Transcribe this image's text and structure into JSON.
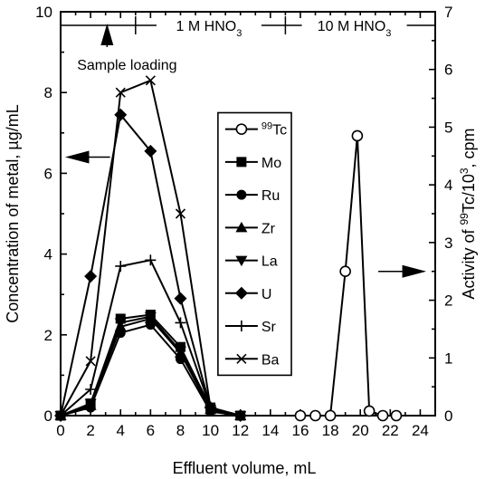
{
  "chart_data": {
    "type": "line",
    "xlabel": "Effluent volume, mL",
    "ylabel": "Concentration of metal, µg/mL",
    "y2label": "Activity of 99Tc/10^3, cpm",
    "y2label_parts": {
      "pre": "Activity of ",
      "sup1": "99",
      "mid": "Tc/10",
      "sup2": "3",
      "post": ", cpm"
    },
    "xlim": [
      0,
      25
    ],
    "ylim": [
      0,
      10
    ],
    "y2lim": [
      0,
      7
    ],
    "xticks": [
      "0",
      "2",
      "4",
      "6",
      "8",
      "10",
      "12",
      "14",
      "16",
      "18",
      "20",
      "22",
      "24"
    ],
    "yticks": [
      "0",
      "2",
      "4",
      "6",
      "8",
      "10"
    ],
    "y2ticks": [
      "0",
      "1",
      "2",
      "3",
      "4",
      "5",
      "6",
      "7"
    ],
    "annotations": {
      "sample_loading": "Sample loading",
      "eluent1": {
        "pre": "1 M HNO",
        "sub": "3"
      },
      "eluent2": {
        "pre": "10 M HNO",
        "sub": "3"
      }
    },
    "series": [
      {
        "name": "Mo",
        "legend": {
          "sup": "",
          "text": "Mo"
        },
        "marker": "square",
        "axis": "left",
        "x": [
          0,
          2,
          4,
          6,
          8,
          10,
          12
        ],
        "y": [
          0,
          0.3,
          2.4,
          2.5,
          1.7,
          0.2,
          0
        ]
      },
      {
        "name": "Ru",
        "legend": {
          "sup": "",
          "text": "Ru"
        },
        "marker": "circle-filled",
        "axis": "left",
        "x": [
          0,
          2,
          4,
          6,
          8,
          10,
          12
        ],
        "y": [
          0,
          0.2,
          2.05,
          2.25,
          1.4,
          0.1,
          0
        ]
      },
      {
        "name": "Zr",
        "legend": {
          "sup": "",
          "text": "Zr"
        },
        "marker": "triangle-up",
        "axis": "left",
        "x": [
          0,
          2,
          4,
          6,
          8,
          10,
          12
        ],
        "y": [
          0,
          0.25,
          2.2,
          2.4,
          1.55,
          0.15,
          0
        ]
      },
      {
        "name": "La",
        "legend": {
          "sup": "",
          "text": "La"
        },
        "marker": "triangle-down",
        "axis": "left",
        "x": [
          0,
          2,
          4,
          6,
          8,
          10,
          12
        ],
        "y": [
          0,
          0.3,
          2.3,
          2.45,
          1.6,
          0.15,
          0
        ]
      },
      {
        "name": "U",
        "legend": {
          "sup": "",
          "text": "U"
        },
        "marker": "diamond",
        "axis": "left",
        "x": [
          0,
          2,
          4,
          6,
          8,
          10,
          12
        ],
        "y": [
          0,
          3.45,
          7.45,
          6.55,
          2.9,
          0.2,
          0
        ]
      },
      {
        "name": "Sr",
        "legend": {
          "sup": "",
          "text": "Sr"
        },
        "marker": "plus",
        "axis": "left",
        "x": [
          0,
          2,
          4,
          6,
          8,
          10,
          12
        ],
        "y": [
          0,
          0.65,
          3.7,
          3.85,
          2.3,
          0.2,
          0
        ]
      },
      {
        "name": "Ba",
        "legend": {
          "sup": "",
          "text": "Ba"
        },
        "marker": "x",
        "axis": "left",
        "x": [
          0,
          2,
          4,
          6,
          8,
          10,
          12
        ],
        "y": [
          0,
          1.35,
          8.0,
          8.3,
          5.0,
          0.2,
          0
        ]
      },
      {
        "name": "99Tc",
        "legend": {
          "sup": "99",
          "text": "Tc"
        },
        "marker": "circle-open",
        "axis": "right",
        "x": [
          16,
          17,
          18,
          19,
          19.8,
          20.6,
          21.5,
          22.4
        ],
        "y": [
          0,
          0,
          0,
          2.5,
          4.85,
          0.08,
          0,
          0
        ]
      }
    ],
    "legend_order": [
      "99Tc",
      "Mo",
      "Ru",
      "Zr",
      "La",
      "U",
      "Sr",
      "Ba"
    ],
    "legend_position": "center-right",
    "grid": false
  }
}
